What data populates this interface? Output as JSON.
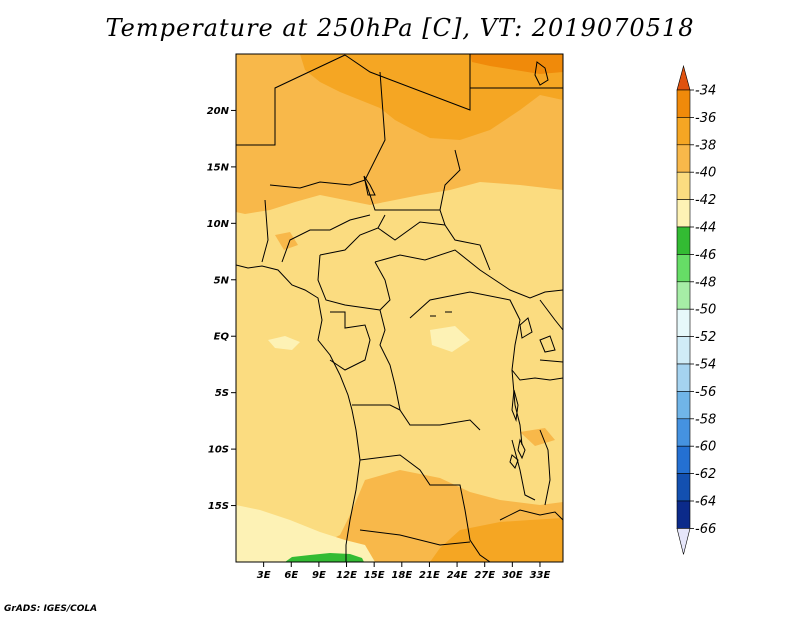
{
  "title": "Temperature at 250hPa [C], VT: 2019070518",
  "credit": "GrADS: IGES/COLA",
  "map": {
    "variable": "Temperature",
    "level": "250hPa",
    "units": "C",
    "valid_time": "2019070518",
    "lon_range": [
      0,
      35.5
    ],
    "lat_range": [
      -20,
      25
    ],
    "lat_ticks": [
      {
        "value": 20,
        "label": "20N"
      },
      {
        "value": 15,
        "label": "15N"
      },
      {
        "value": 10,
        "label": "10N"
      },
      {
        "value": 5,
        "label": "5N"
      },
      {
        "value": 0,
        "label": "EQ"
      },
      {
        "value": -5,
        "label": "5S"
      },
      {
        "value": -10,
        "label": "10S"
      },
      {
        "value": -15,
        "label": "15S"
      }
    ],
    "lon_ticks": [
      {
        "value": 3,
        "label": "3E"
      },
      {
        "value": 6,
        "label": "6E"
      },
      {
        "value": 9,
        "label": "9E"
      },
      {
        "value": 12,
        "label": "12E"
      },
      {
        "value": 15,
        "label": "15E"
      },
      {
        "value": 18,
        "label": "18E"
      },
      {
        "value": 21,
        "label": "21E"
      },
      {
        "value": 24,
        "label": "24E"
      },
      {
        "value": 27,
        "label": "27E"
      },
      {
        "value": 30,
        "label": "30E"
      },
      {
        "value": 33,
        "label": "33E"
      }
    ],
    "background_band": "-42 to -40"
  },
  "colorbar": {
    "levels": [
      "-34",
      "-36",
      "-38",
      "-40",
      "-42",
      "-44",
      "-46",
      "-48",
      "-50",
      "-52",
      "-54",
      "-56",
      "-58",
      "-60",
      "-62",
      "-64",
      "-66"
    ],
    "colors": [
      "#e0520f",
      "#f08a0a",
      "#f5a623",
      "#f8b84a",
      "#fbdc80",
      "#fdf2b5",
      "#33bb33",
      "#66dd66",
      "#a6eda6",
      "#e6f8fa",
      "#d0ecf7",
      "#a5d3f0",
      "#70b5e8",
      "#4592e0",
      "#2470d2",
      "#1350b0",
      "#0b2a8a",
      "#08135e"
    ],
    "top_arrow_color": "#e0520f",
    "bottom_arrow_color": "#e6e6fa"
  }
}
